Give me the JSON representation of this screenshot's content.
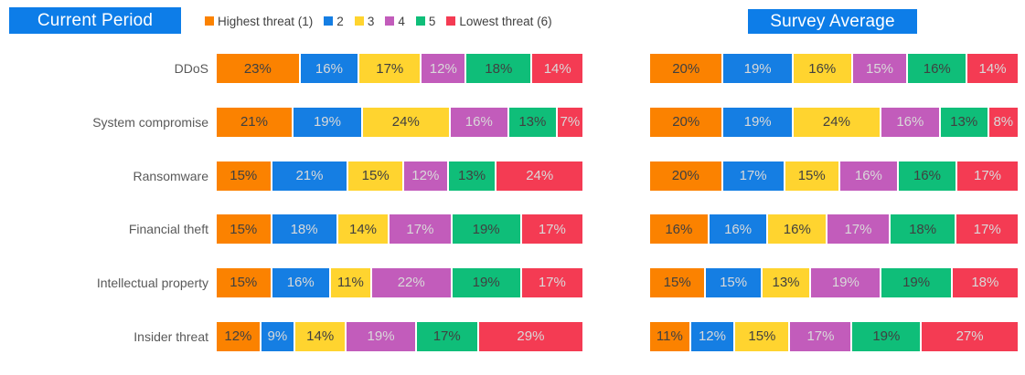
{
  "panels": [
    {
      "title": "Current Period"
    },
    {
      "title": "Survey Average"
    }
  ],
  "legend": {
    "position": "top",
    "items": [
      {
        "label": "Highest threat (1)",
        "color": "#FB8200"
      },
      {
        "label": "2",
        "color": "#157EE3"
      },
      {
        "label": "3",
        "color": "#FFD42F"
      },
      {
        "label": "4",
        "color": "#C25CBB"
      },
      {
        "label": "5",
        "color": "#0FBE79"
      },
      {
        "label": "Lowest threat (6)",
        "color": "#F43B53"
      }
    ]
  },
  "chart_data": [
    {
      "type": "bar",
      "stacked": true,
      "orientation": "horizontal",
      "title": "Current Period",
      "value_suffix": "%",
      "xlim": [
        0,
        100
      ],
      "grid": false,
      "categories": [
        "DDoS",
        "System compromise",
        "Ransomware",
        "Financial theft",
        "Intellectual property",
        "Insider threat"
      ],
      "series": [
        {
          "name": "Highest threat (1)",
          "color": "#FB8200",
          "values": [
            23,
            21,
            15,
            15,
            15,
            12
          ]
        },
        {
          "name": "2",
          "color": "#157EE3",
          "values": [
            16,
            19,
            21,
            18,
            16,
            9
          ]
        },
        {
          "name": "3",
          "color": "#FFD42F",
          "values": [
            17,
            24,
            15,
            14,
            11,
            14
          ]
        },
        {
          "name": "4",
          "color": "#C25CBB",
          "values": [
            12,
            16,
            12,
            17,
            22,
            19
          ]
        },
        {
          "name": "5",
          "color": "#0FBE79",
          "values": [
            18,
            13,
            13,
            19,
            19,
            17
          ]
        },
        {
          "name": "Lowest threat (6)",
          "color": "#F43B53",
          "values": [
            14,
            7,
            24,
            17,
            17,
            29
          ]
        }
      ]
    },
    {
      "type": "bar",
      "stacked": true,
      "orientation": "horizontal",
      "title": "Survey Average",
      "value_suffix": "%",
      "xlim": [
        0,
        100
      ],
      "grid": false,
      "categories": [
        "DDoS",
        "System compromise",
        "Ransomware",
        "Financial theft",
        "Intellectual property",
        "Insider threat"
      ],
      "series": [
        {
          "name": "Highest threat (1)",
          "color": "#FB8200",
          "values": [
            20,
            20,
            20,
            16,
            15,
            11
          ]
        },
        {
          "name": "2",
          "color": "#157EE3",
          "values": [
            19,
            19,
            17,
            16,
            15,
            12
          ]
        },
        {
          "name": "3",
          "color": "#FFD42F",
          "values": [
            16,
            24,
            15,
            16,
            13,
            15
          ]
        },
        {
          "name": "4",
          "color": "#C25CBB",
          "values": [
            15,
            16,
            16,
            17,
            19,
            17
          ]
        },
        {
          "name": "5",
          "color": "#0FBE79",
          "values": [
            16,
            13,
            16,
            18,
            19,
            19
          ]
        },
        {
          "name": "Lowest threat (6)",
          "color": "#F43B53",
          "values": [
            14,
            8,
            17,
            17,
            18,
            27
          ]
        }
      ]
    }
  ],
  "style": {
    "title_bg": "#0D7DE8",
    "title_text": "#FFFFFF",
    "axis_label_color": "#595959",
    "dark_segment_text": "#404040",
    "light_segment_text": "#D9D9D9",
    "light_text_segment_indexes": [
      1,
      3,
      5
    ],
    "background": "#FFFFFF"
  }
}
